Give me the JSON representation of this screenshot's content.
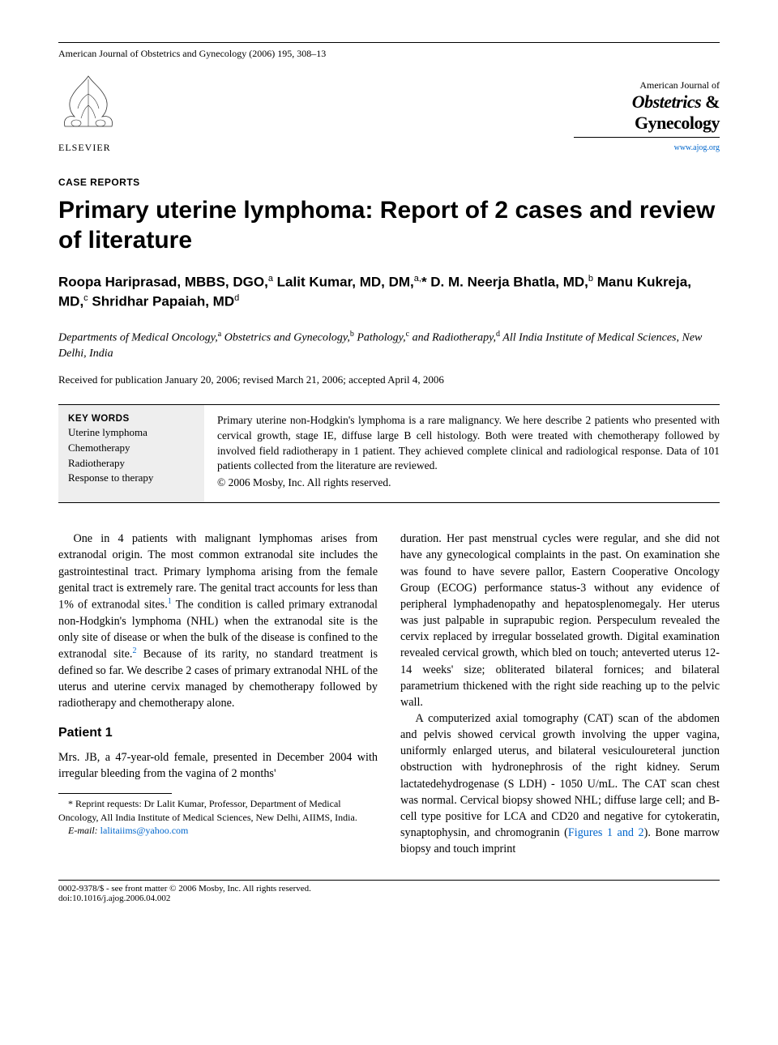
{
  "header": {
    "journal_ref": "American Journal of Obstetrics and Gynecology (2006) 195, 308–13",
    "brand_small": "American Journal of",
    "brand_line1_italic": "Obstetrics",
    "brand_amp": " &",
    "brand_line2": "Gynecology",
    "url": "www.ajog.org",
    "publisher": "ELSEVIER"
  },
  "section_label": "CASE REPORTS",
  "title": "Primary uterine lymphoma: Report of 2 cases and review of literature",
  "authors_html": "Roopa Hariprasad, MBBS, DGO,<sup>a</sup> Lalit Kumar, MD, DM,<sup>a,</sup>* D. M. Neerja Bhatla, MD,<sup>b</sup> Manu Kukreja, MD,<sup>c</sup> Shridhar Papaiah, MD<sup>d</sup>",
  "affiliations_html": "Departments of Medical Oncology,<sup>a</sup> Obstetrics and Gynecology,<sup>b</sup> Pathology,<sup>c</sup> and Radiotherapy,<sup>d</sup> All India Institute of Medical Sciences, New Delhi, India",
  "dates": "Received for publication January 20, 2006; revised March 21, 2006; accepted April 4, 2006",
  "keywords": {
    "head": "KEY WORDS",
    "items": [
      "Uterine lymphoma",
      "Chemotherapy",
      "Radiotherapy",
      "Response to therapy"
    ]
  },
  "abstract": "Primary uterine non-Hodgkin's lymphoma is a rare malignancy. We here describe 2 patients who presented with cervical growth, stage IE, diffuse large B cell histology. Both were treated with chemotherapy followed by involved field radiotherapy in 1 patient. They achieved complete clinical and radiological response. Data of 101 patients collected from the literature are reviewed.",
  "abstract_copyright": "© 2006 Mosby, Inc. All rights reserved.",
  "body": {
    "intro": "One in 4 patients with malignant lymphomas arises from extranodal origin. The most common extranodal site includes the gastrointestinal tract. Primary lymphoma arising from the female genital tract is extremely rare. The genital tract accounts for less than 1% of extranodal sites.<sup><a class=\"ref\">1</a></sup> The condition is called primary extranodal non-Hodgkin's lymphoma (NHL) when the extranodal site is the only site of disease or when the bulk of the disease is confined to the extranodal site.<sup><a class=\"ref\">2</a></sup> Because of its rarity, no standard treatment is defined so far. We describe 2 cases of primary extranodal NHL of the uterus and uterine cervix managed by chemotherapy followed by radiotherapy and chemotherapy alone.",
    "patient1_head": "Patient 1",
    "patient1_p1": "Mrs. JB, a 47-year-old female, presented in December 2004 with irregular bleeding from the vagina of 2 months'",
    "col2_p1": "duration. Her past menstrual cycles were regular, and she did not have any gynecological complaints in the past. On examination she was found to have severe pallor, Eastern Cooperative Oncology Group (ECOG) performance status-3 without any evidence of peripheral lymphadenopathy and hepatosplenomegaly. Her uterus was just palpable in suprapubic region. Perspeculum revealed the cervix replaced by irregular bosselated growth. Digital examination revealed cervical growth, which bled on touch; anteverted uterus 12-14 weeks' size; obliterated bilateral fornices; and bilateral parametrium thickened with the right side reaching up to the pelvic wall.",
    "col2_p2": "A computerized axial tomography (CAT) scan of the abdomen and pelvis showed cervical growth involving the upper vagina, uniformly enlarged uterus, and bilateral vesiculoureteral junction obstruction with hydronephrosis of the right kidney. Serum lactatedehydrogenase (S LDH) - 1050 U/mL. The CAT scan chest was normal. Cervical biopsy showed NHL; diffuse large cell; and B-cell type positive for LCA and CD20 and negative for cytokeratin, synaptophysin, and chromogranin (<a class=\"ref\">Figures 1 and 2</a>). Bone marrow biopsy and touch imprint"
  },
  "footnotes": {
    "reprint": "* Reprint requests: Dr Lalit Kumar, Professor, Department of Medical Oncology, All India Institute of Medical Sciences, New Delhi, AIIMS, India.",
    "email_label": "E-mail:",
    "email": "lalitaiims@yahoo.com"
  },
  "footer": {
    "line1": "0002-9378/$ - see front matter © 2006 Mosby, Inc. All rights reserved.",
    "line2": "doi:10.1016/j.ajog.2006.04.002"
  },
  "colors": {
    "link": "#0066cc",
    "kw_bg": "#eeeeee"
  }
}
